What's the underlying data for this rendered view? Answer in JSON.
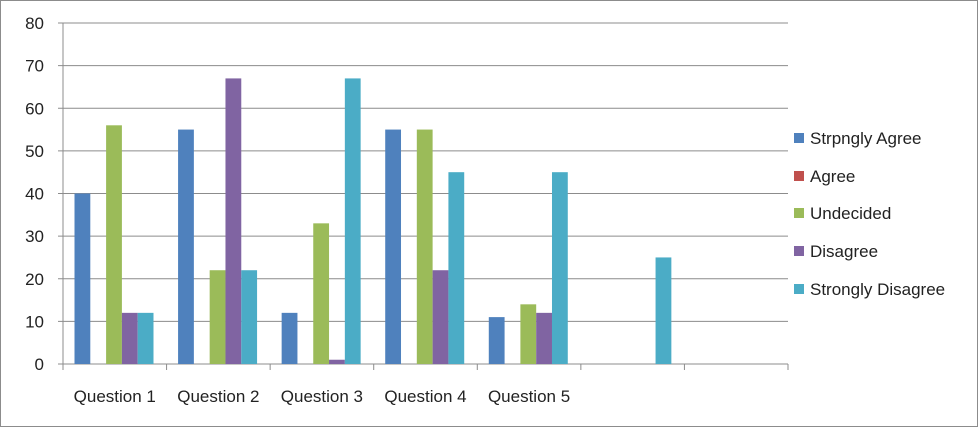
{
  "chart_data": {
    "type": "bar",
    "title": "",
    "xlabel": "",
    "ylabel": "",
    "categories": [
      "Question 1",
      "Question 2",
      "Question 3",
      "Question 4",
      "Question 5",
      "",
      ""
    ],
    "ylim": [
      0,
      80
    ],
    "yticks": [
      "0",
      "10",
      "20",
      "30",
      "40",
      "50",
      "60",
      "70",
      "80"
    ],
    "grid": true,
    "legend_position": "right",
    "series": [
      {
        "name": "Strpngly Agree",
        "color": "#4f81bd",
        "values": [
          40,
          55,
          12,
          55,
          11,
          null,
          null
        ]
      },
      {
        "name": "Agree",
        "color": "#c0504d",
        "values": [
          null,
          null,
          null,
          null,
          null,
          null,
          null
        ]
      },
      {
        "name": "Undecided",
        "color": "#9bbb59",
        "values": [
          56,
          22,
          33,
          55,
          14,
          null,
          null
        ]
      },
      {
        "name": "Disagree",
        "color": "#8064a2",
        "values": [
          12,
          67,
          1,
          22,
          12,
          null,
          null
        ]
      },
      {
        "name": "Strongly Disagree",
        "color": "#4bacc6",
        "values": [
          12,
          22,
          67,
          45,
          45,
          25,
          null
        ]
      }
    ]
  }
}
